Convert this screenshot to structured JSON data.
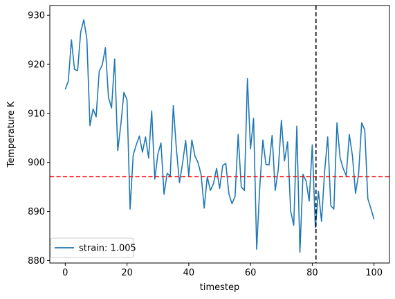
{
  "chart_data": {
    "type": "line",
    "title": "",
    "xlabel": "timestep",
    "ylabel": "Temperature K",
    "xlim": [
      -5,
      105
    ],
    "ylim": [
      879.5,
      932
    ],
    "xticks": [
      0,
      20,
      40,
      60,
      80,
      100
    ],
    "yticks": [
      880,
      890,
      900,
      910,
      920,
      930
    ],
    "grid": false,
    "legend": {
      "placement": "lower-left"
    },
    "series": [
      {
        "name": "strain: 1.005",
        "color": "#1f77b4",
        "x": [
          0,
          1,
          2,
          3,
          4,
          5,
          6,
          7,
          8,
          9,
          10,
          11,
          12,
          13,
          14,
          15,
          16,
          17,
          18,
          19,
          20,
          21,
          22,
          23,
          24,
          25,
          26,
          27,
          28,
          29,
          30,
          31,
          32,
          33,
          34,
          35,
          36,
          37,
          38,
          39,
          40,
          41,
          42,
          43,
          44,
          45,
          46,
          47,
          48,
          49,
          50,
          51,
          52,
          53,
          54,
          55,
          56,
          57,
          58,
          59,
          60,
          61,
          62,
          63,
          64,
          65,
          66,
          67,
          68,
          69,
          70,
          71,
          72,
          73,
          74,
          75,
          76,
          77,
          78,
          79,
          80,
          81,
          82,
          83,
          84,
          85,
          86,
          87,
          88,
          89,
          90,
          91,
          92,
          93,
          94,
          95,
          96,
          97,
          98,
          99,
          100
        ],
        "y": [
          914.9,
          916.6,
          925.0,
          919.0,
          918.7,
          926.6,
          929.1,
          925.2,
          907.5,
          910.9,
          909.3,
          918.6,
          919.9,
          923.4,
          913.3,
          911.1,
          921.1,
          902.4,
          907.7,
          914.3,
          912.8,
          890.5,
          901.5,
          903.6,
          905.4,
          902.1,
          905.2,
          900.9,
          910.5,
          896.6,
          901.7,
          904.0,
          893.5,
          897.8,
          897.2,
          911.6,
          902.7,
          895.9,
          899.9,
          904.5,
          897.3,
          904.6,
          901.3,
          900.0,
          897.5,
          890.7,
          897.1,
          894.3,
          895.7,
          898.8,
          894.7,
          899.4,
          899.8,
          893.6,
          891.6,
          893.1,
          905.7,
          895.0,
          894.3,
          917.1,
          902.8,
          909.0,
          882.3,
          895.0,
          904.6,
          899.6,
          899.5,
          905.5,
          894.3,
          898.6,
          908.6,
          900.3,
          904.2,
          890.1,
          887.2,
          907.4,
          881.7,
          897.6,
          896.2,
          892.1,
          903.6,
          886.7,
          894.1,
          888.0,
          898.2,
          905.2,
          891.2,
          890.5,
          908.1,
          901.0,
          898.8,
          897.3,
          905.7,
          901.4,
          893.7,
          897.6,
          908.1,
          906.6,
          892.6,
          890.6,
          888.4
        ]
      }
    ],
    "reference_lines": [
      {
        "orientation": "horizontal",
        "value": 897.1,
        "color": "#ff0000",
        "style": "dashed"
      },
      {
        "orientation": "vertical",
        "value": 81.2,
        "color": "#000000",
        "style": "dashed"
      }
    ]
  }
}
